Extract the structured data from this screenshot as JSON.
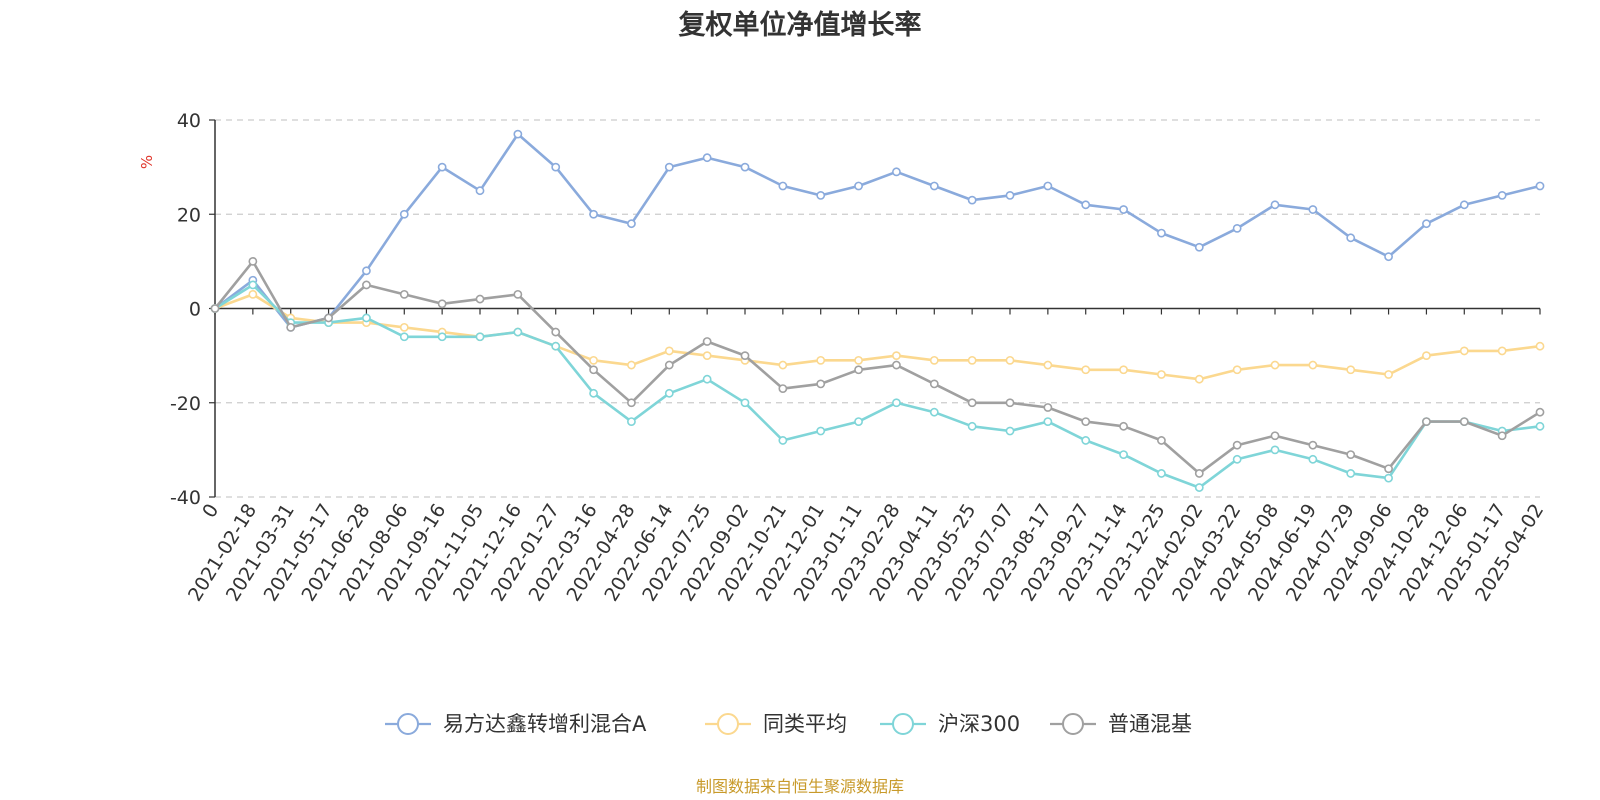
{
  "chart_data": {
    "type": "line",
    "title": "复权单位净值增长率",
    "ylabel": "%",
    "ylim": [
      -40,
      40
    ],
    "yticks": [
      40,
      20,
      0,
      -20,
      -40
    ],
    "grid": true,
    "legend_position": "bottom",
    "x": [
      "0",
      "2021-02-18",
      "2021-03-31",
      "2021-05-17",
      "2021-06-28",
      "2021-08-06",
      "2021-09-16",
      "2021-11-05",
      "2021-12-16",
      "2022-01-27",
      "2022-03-16",
      "2022-04-28",
      "2022-06-14",
      "2022-07-25",
      "2022-09-02",
      "2022-10-21",
      "2022-12-01",
      "2023-01-11",
      "2023-02-28",
      "2023-04-11",
      "2023-05-25",
      "2023-07-07",
      "2023-08-17",
      "2023-09-27",
      "2023-11-14",
      "2023-12-25",
      "2024-02-02",
      "2024-03-22",
      "2024-05-08",
      "2024-06-19",
      "2024-07-29",
      "2024-09-06",
      "2024-10-28",
      "2024-12-06",
      "2025-01-17",
      "2025-04-02"
    ],
    "series": [
      {
        "name": "易方达鑫转增利混合A",
        "color": "#8aaadc",
        "values": [
          0,
          6,
          -4,
          -2,
          8,
          20,
          30,
          25,
          37,
          30,
          20,
          18,
          30,
          32,
          30,
          26,
          24,
          26,
          29,
          26,
          23,
          24,
          26,
          22,
          21,
          16,
          13,
          17,
          22,
          21,
          15,
          11,
          18,
          22,
          24,
          26
        ]
      },
      {
        "name": "同类平均",
        "color": "#fbd88f",
        "values": [
          0,
          3,
          -2,
          -3,
          -3,
          -4,
          -5,
          -6,
          -5,
          -8,
          -11,
          -12,
          -9,
          -10,
          -11,
          -12,
          -11,
          -11,
          -10,
          -11,
          -11,
          -11,
          -12,
          -13,
          -13,
          -14,
          -15,
          -13,
          -12,
          -12,
          -13,
          -14,
          -10,
          -9,
          -9,
          -8
        ]
      },
      {
        "name": "沪深300",
        "color": "#7fd5d8",
        "values": [
          0,
          5,
          -3,
          -3,
          -2,
          -6,
          -6,
          -6,
          -5,
          -8,
          -18,
          -24,
          -18,
          -15,
          -20,
          -28,
          -26,
          -24,
          -20,
          -22,
          -25,
          -26,
          -24,
          -28,
          -31,
          -35,
          -38,
          -32,
          -30,
          -32,
          -35,
          -36,
          -24,
          -24,
          -26,
          -25
        ]
      },
      {
        "name": "普通混基",
        "color": "#a0a0a0",
        "values": [
          0,
          10,
          -4,
          -2,
          5,
          3,
          1,
          2,
          3,
          -5,
          -13,
          -20,
          -12,
          -7,
          -10,
          -17,
          -16,
          -13,
          -12,
          -16,
          -20,
          -20,
          -21,
          -24,
          -25,
          -28,
          -35,
          -29,
          -27,
          -29,
          -31,
          -34,
          -24,
          -24,
          -27,
          -22
        ]
      }
    ]
  },
  "footer": {
    "source": "制图数据来自恒生聚源数据库"
  }
}
